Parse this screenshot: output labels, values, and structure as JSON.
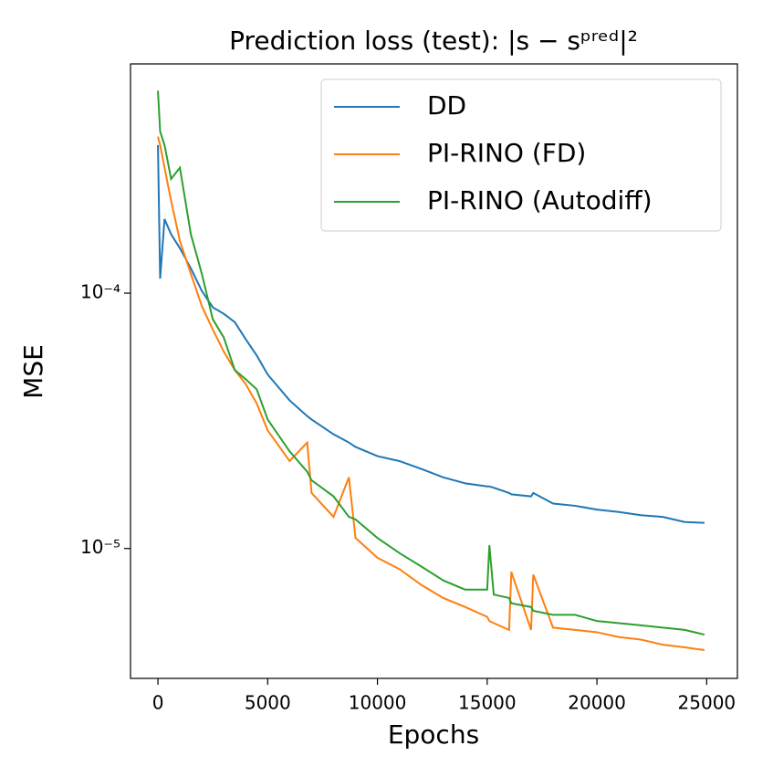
{
  "chart_data": {
    "type": "line",
    "title": "Prediction loss (test): |s − sᵖʳᵉᵈ|²",
    "xlabel": "Epochs",
    "ylabel": "MSE",
    "x": [
      0,
      100,
      300,
      600,
      1000,
      1500,
      2000,
      2500,
      3000,
      3500,
      4000,
      4500,
      5000,
      6000,
      6800,
      7000,
      8000,
      8700,
      9000,
      10000,
      11000,
      12000,
      13000,
      14000,
      15000,
      15100,
      15300,
      16000,
      16100,
      17000,
      17100,
      18000,
      19000,
      20000,
      21000,
      22000,
      23000,
      24000,
      24900
    ],
    "series": [
      {
        "name": "DD",
        "color": "#1f77b4",
        "values": [
          0.00038,
          0.000114,
          0.000195,
          0.00017,
          0.00015,
          0.000125,
          0.000102,
          8.8e-05,
          8.3e-05,
          7.7e-05,
          6.6e-05,
          5.7e-05,
          4.8e-05,
          3.8e-05,
          3.3e-05,
          3.2e-05,
          2.8e-05,
          2.6e-05,
          2.5e-05,
          2.3e-05,
          2.2e-05,
          2.05e-05,
          1.9e-05,
          1.8e-05,
          1.75e-05,
          1.75e-05,
          1.73e-05,
          1.65e-05,
          1.63e-05,
          1.6e-05,
          1.65e-05,
          1.5e-05,
          1.47e-05,
          1.42e-05,
          1.39e-05,
          1.35e-05,
          1.33e-05,
          1.27e-05,
          1.26e-05
        ]
      },
      {
        "name": "PI-RINO (FD)",
        "color": "#ff7f0e",
        "values": [
          0.00041,
          0.00038,
          0.00031,
          0.00023,
          0.00016,
          0.000119,
          8.9e-05,
          7.2e-05,
          5.9e-05,
          5e-05,
          4.4e-05,
          3.7e-05,
          2.9e-05,
          2.2e-05,
          2.6e-05,
          1.65e-05,
          1.33e-05,
          1.9e-05,
          1.1e-05,
          9.2e-06,
          8.3e-06,
          7.2e-06,
          6.4e-06,
          5.9e-06,
          5.4e-06,
          5.2e-06,
          5.1e-06,
          4.8e-06,
          8.1e-06,
          4.8e-06,
          7.9e-06,
          4.9e-06,
          4.8e-06,
          4.7e-06,
          4.5e-06,
          4.4e-06,
          4.2e-06,
          4.1e-06,
          4e-06
        ]
      },
      {
        "name": "PI-RINO (Autodiff)",
        "color": "#2ca02c",
        "values": [
          0.00062,
          0.00043,
          0.00038,
          0.00028,
          0.00031,
          0.00017,
          0.000119,
          7.9e-05,
          6.7e-05,
          5e-05,
          4.6e-05,
          4.2e-05,
          3.2e-05,
          2.4e-05,
          2e-05,
          1.85e-05,
          1.6e-05,
          1.33e-05,
          1.3e-05,
          1.1e-05,
          9.6e-06,
          8.5e-06,
          7.5e-06,
          6.9e-06,
          6.9e-06,
          1.03e-05,
          6.6e-06,
          6.4e-06,
          6.1e-06,
          5.9e-06,
          5.7e-06,
          5.5e-06,
          5.5e-06,
          5.2e-06,
          5.1e-06,
          5e-06,
          4.9e-06,
          4.8e-06,
          4.6e-06
        ]
      }
    ],
    "xlim": [
      -1250,
      26400
    ],
    "xticks": [
      0,
      5000,
      10000,
      15000,
      20000,
      25000
    ],
    "ylim": [
      3.1e-06,
      0.00079
    ],
    "yticks": [
      {
        "value": 1e-05,
        "label": "10⁻⁵"
      },
      {
        "value": 0.0001,
        "label": "10⁻⁴"
      }
    ],
    "yscale": "log",
    "grid": false,
    "legend": "upper right"
  }
}
